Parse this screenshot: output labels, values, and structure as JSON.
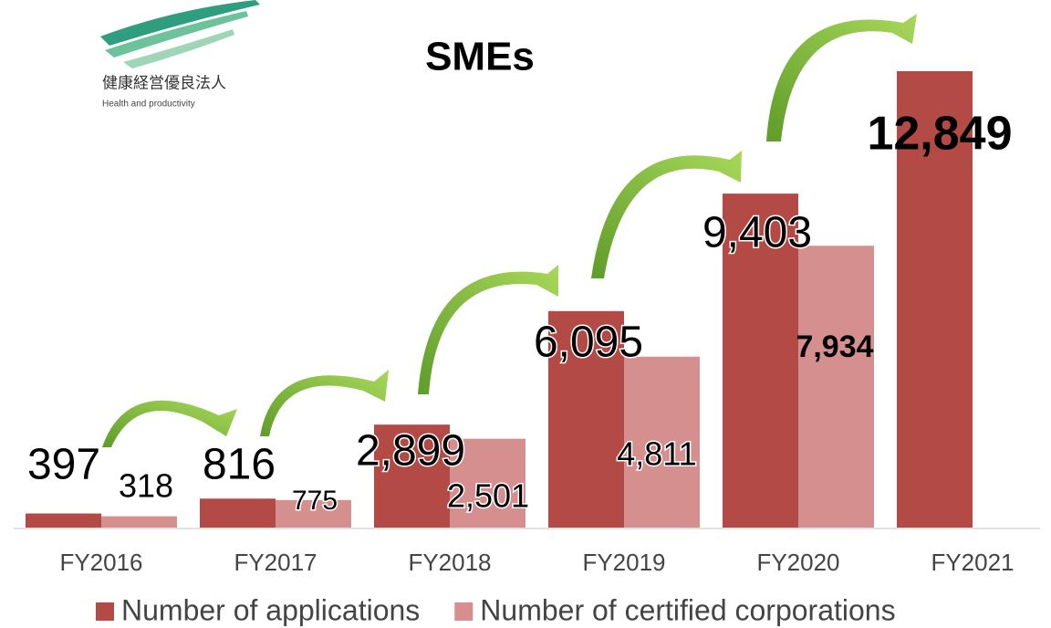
{
  "logo": {
    "title": "健康経営優良法人",
    "subtitle": "Health and productivity"
  },
  "chart_data": {
    "type": "bar",
    "title": "SMEs",
    "categories": [
      "FY2016",
      "FY2017",
      "FY2018",
      "FY2019",
      "FY2020",
      "FY2021"
    ],
    "series": [
      {
        "name": "Number of applications",
        "color": "#b34a46",
        "values": [
          397,
          816,
          2899,
          6095,
          9403,
          12849
        ],
        "value_labels": [
          "397",
          "816",
          "2,899",
          "6,095",
          "9,403",
          "12,849"
        ]
      },
      {
        "name": "Number of certified corporations",
        "color": "#d48f8e",
        "values": [
          318,
          775,
          2501,
          4811,
          7934,
          null
        ],
        "value_labels": [
          "318",
          "775",
          "2,501",
          "4,811",
          "7,934",
          null
        ]
      }
    ],
    "legend": "bottom"
  }
}
